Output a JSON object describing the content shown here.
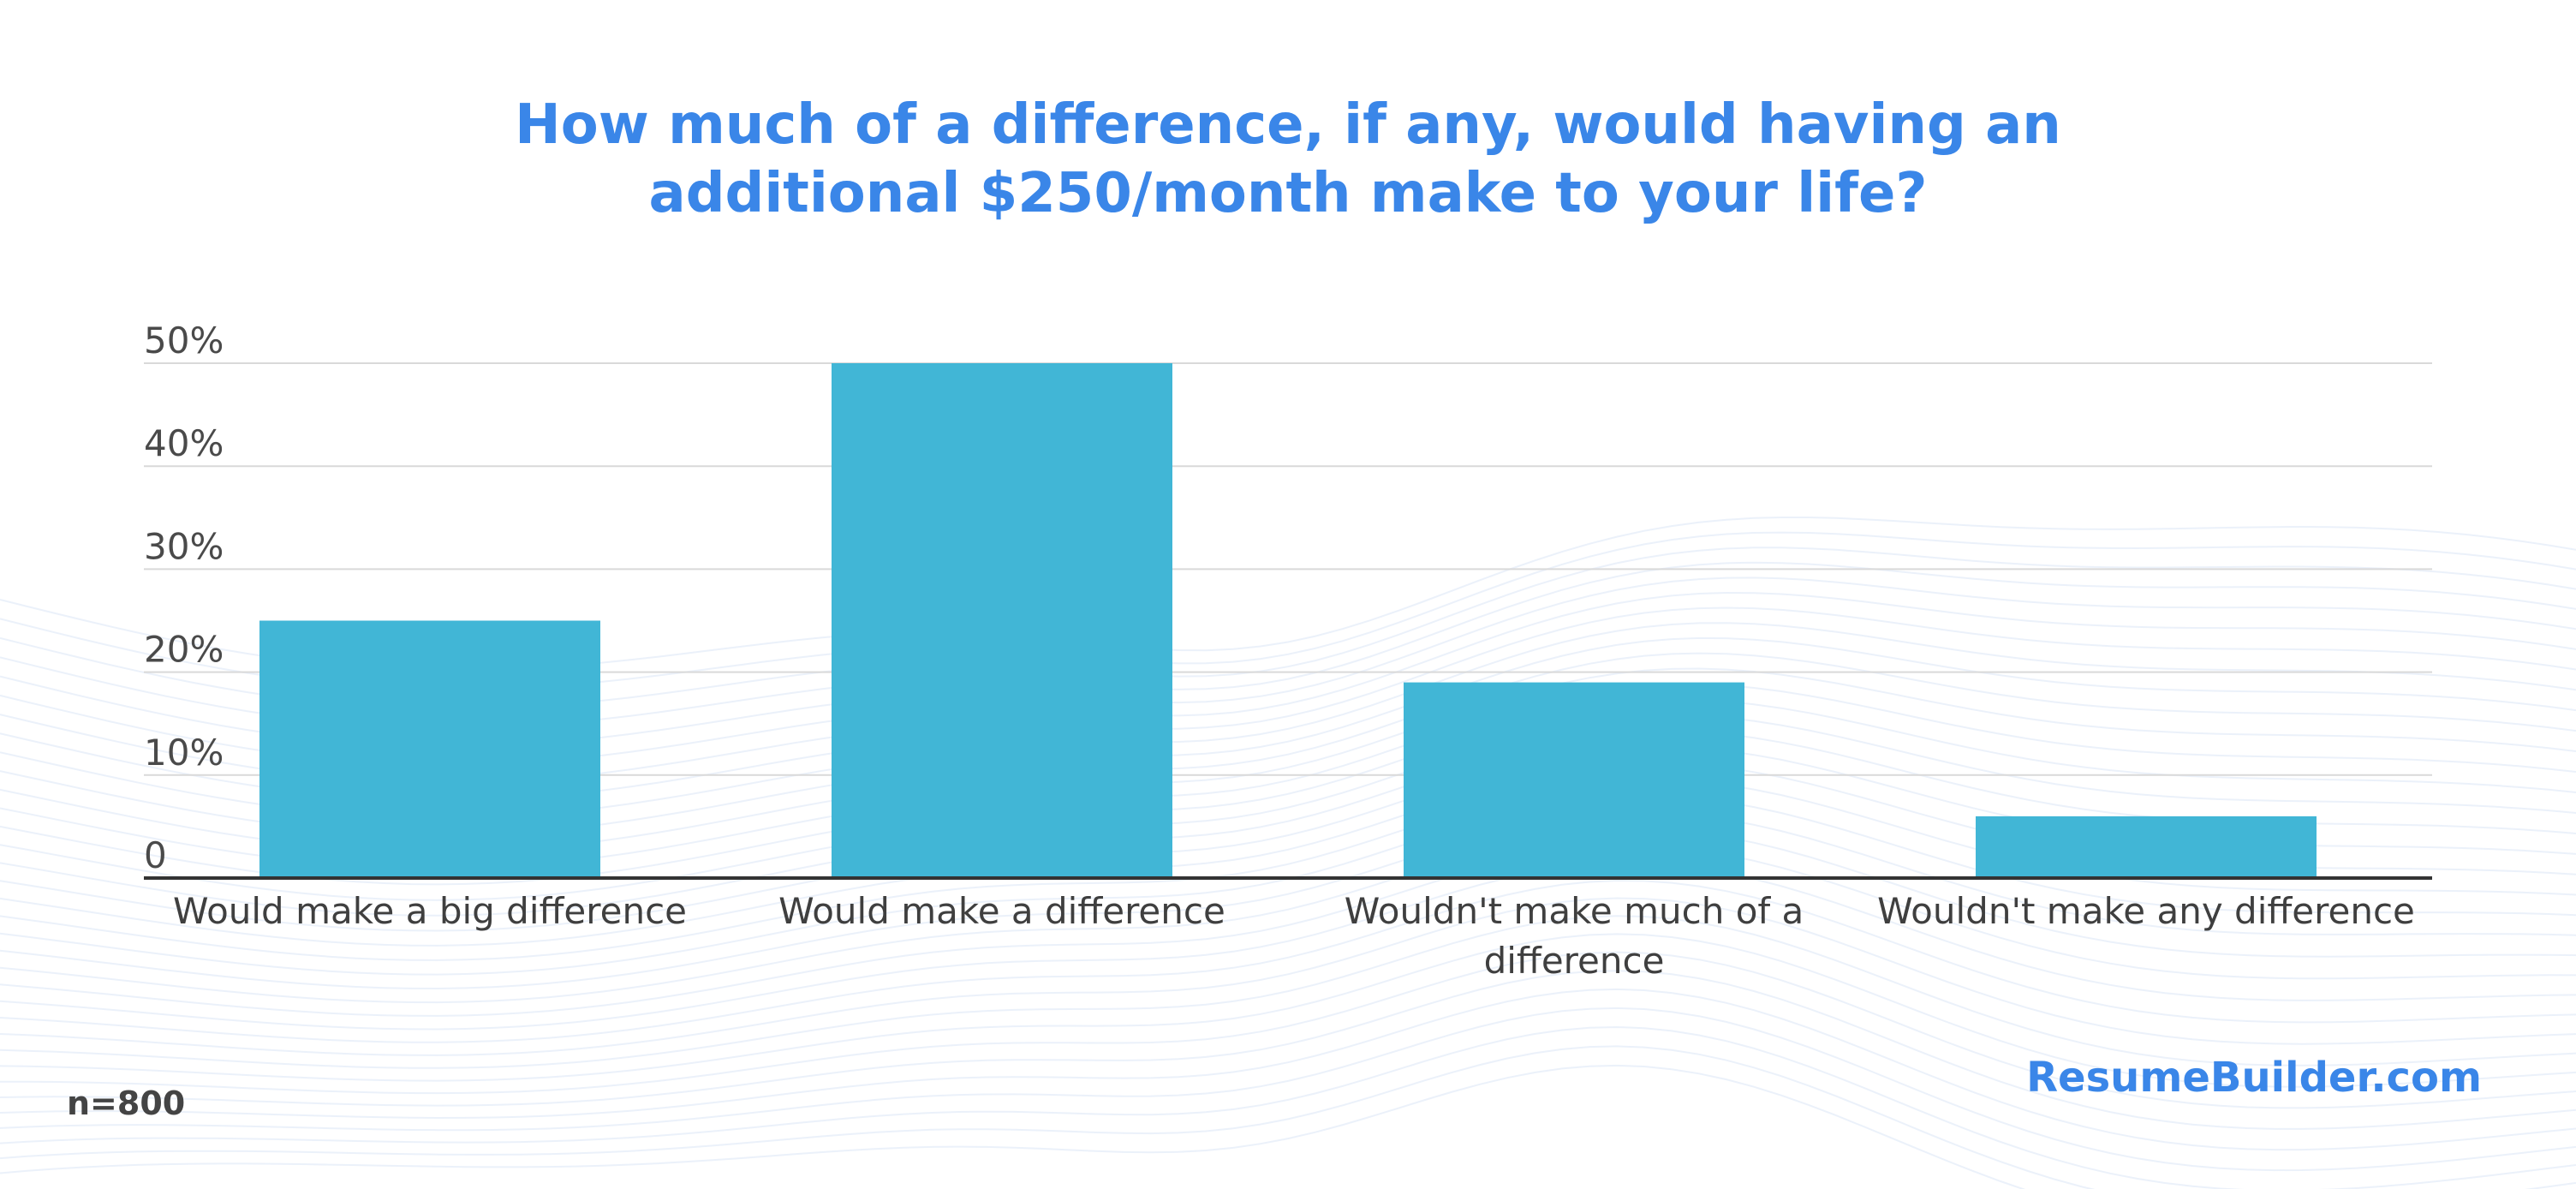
{
  "title_lines": [
    "How much of a difference, if any, would having an",
    "additional $250/month make to your life?"
  ],
  "footer": {
    "sample_size": "n=800",
    "brand": "ResumeBuilder.com"
  },
  "colors": {
    "title": "#3a86e8",
    "bar": "#41b6d6",
    "grid": "#d9d9d9",
    "axis": "#333333",
    "brand": "#3a86e8"
  },
  "chart_data": {
    "type": "bar",
    "title": "How much of a difference, if any, would having an additional $250/month make to your life?",
    "categories": [
      [
        "Would make a big difference"
      ],
      [
        "Would make a difference"
      ],
      [
        "Wouldn't make much of a",
        "difference"
      ],
      [
        "Wouldn't make any difference"
      ]
    ],
    "values": [
      25,
      50,
      19,
      6
    ],
    "unit": "%",
    "ylim": [
      0,
      50
    ],
    "yticks": [
      0,
      10,
      20,
      30,
      40,
      50
    ],
    "ytick_labels": [
      "0",
      "10%",
      "20%",
      "30%",
      "40%",
      "50%"
    ],
    "grid": true,
    "legend": false
  }
}
